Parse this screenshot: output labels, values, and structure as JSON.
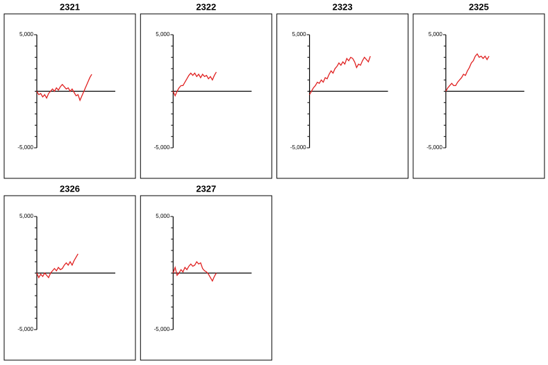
{
  "chart_data": [
    {
      "type": "line",
      "title": "2321",
      "color": "#e02020",
      "xlim": [
        0,
        40
      ],
      "ylim": [
        -5000,
        5000
      ],
      "yticks": [
        {
          "value": 5000,
          "label": "5,000"
        },
        {
          "value": -5000,
          "label": "-5,000"
        }
      ],
      "yminorticks": [
        -4000,
        -3000,
        -2000,
        -1000,
        0,
        1000,
        2000,
        3000,
        4000
      ],
      "values": [
        0,
        -300,
        -200,
        -500,
        -300,
        -600,
        -200,
        0,
        200,
        0,
        300,
        100,
        400,
        600,
        400,
        200,
        300,
        0,
        200,
        -100,
        -400,
        -300,
        -800,
        -400,
        0,
        400,
        800,
        1200,
        1500
      ]
    },
    {
      "type": "line",
      "title": "2322",
      "color": "#e02020",
      "xlim": [
        0,
        40
      ],
      "ylim": [
        -5000,
        5000
      ],
      "yticks": [
        {
          "value": 5000,
          "label": "5,000"
        },
        {
          "value": -5000,
          "label": "-5,000"
        }
      ],
      "yminorticks": [
        -4000,
        -3000,
        -2000,
        -1000,
        0,
        1000,
        2000,
        3000,
        4000
      ],
      "values": [
        0,
        -400,
        0,
        300,
        500,
        500,
        800,
        1100,
        1400,
        1600,
        1400,
        1600,
        1300,
        1500,
        1200,
        1500,
        1300,
        1400,
        1100,
        1300,
        1000,
        1400,
        1700
      ]
    },
    {
      "type": "line",
      "title": "2323",
      "color": "#e02020",
      "xlim": [
        0,
        40
      ],
      "ylim": [
        -5000,
        5000
      ],
      "yticks": [
        {
          "value": 5000,
          "label": "5,000"
        },
        {
          "value": -5000,
          "label": "-5,000"
        }
      ],
      "yminorticks": [
        -4000,
        -3000,
        -2000,
        -1000,
        0,
        1000,
        2000,
        3000,
        4000
      ],
      "values": [
        -300,
        0,
        300,
        500,
        800,
        700,
        1000,
        800,
        1200,
        1100,
        1500,
        1800,
        1600,
        2000,
        2200,
        2500,
        2300,
        2600,
        2400,
        2900,
        2700,
        3000,
        2900,
        2600,
        2100,
        2400,
        2300,
        2700,
        3000,
        2800,
        2600,
        3100
      ]
    },
    {
      "type": "line",
      "title": "2325",
      "color": "#e02020",
      "xlim": [
        0,
        40
      ],
      "ylim": [
        -5000,
        5000
      ],
      "yticks": [
        {
          "value": 5000,
          "label": "5,000"
        },
        {
          "value": -5000,
          "label": "-5,000"
        }
      ],
      "yminorticks": [
        -4000,
        -3000,
        -2000,
        -1000,
        0,
        1000,
        2000,
        3000,
        4000
      ],
      "values": [
        0,
        300,
        500,
        700,
        500,
        500,
        800,
        1000,
        1200,
        1500,
        1400,
        1800,
        2100,
        2500,
        2700,
        3100,
        3300,
        3000,
        3100,
        2900,
        3100,
        2800,
        3100
      ]
    },
    {
      "type": "line",
      "title": "2326",
      "color": "#e02020",
      "xlim": [
        0,
        40
      ],
      "ylim": [
        -5000,
        5000
      ],
      "yticks": [
        {
          "value": 5000,
          "label": "5,000"
        },
        {
          "value": -5000,
          "label": "-5,000"
        }
      ],
      "yminorticks": [
        -4000,
        -3000,
        -2000,
        -1000,
        0,
        1000,
        2000,
        3000,
        4000
      ],
      "values": [
        0,
        -400,
        -100,
        -300,
        0,
        -200,
        -400,
        0,
        200,
        400,
        200,
        500,
        300,
        400,
        700,
        900,
        700,
        1000,
        700,
        1100,
        1400,
        1700
      ]
    },
    {
      "type": "line",
      "title": "2327",
      "color": "#e02020",
      "xlim": [
        0,
        40
      ],
      "ylim": [
        -5000,
        5000
      ],
      "yticks": [
        {
          "value": 5000,
          "label": "5,000"
        },
        {
          "value": -5000,
          "label": "-5,000"
        }
      ],
      "yminorticks": [
        -4000,
        -3000,
        -2000,
        -1000,
        0,
        1000,
        2000,
        3000,
        4000
      ],
      "values": [
        0,
        500,
        -200,
        0,
        300,
        100,
        500,
        300,
        600,
        800,
        600,
        700,
        1000,
        800,
        900,
        400,
        200,
        100,
        -100,
        -400,
        -700,
        -300,
        0
      ]
    }
  ]
}
